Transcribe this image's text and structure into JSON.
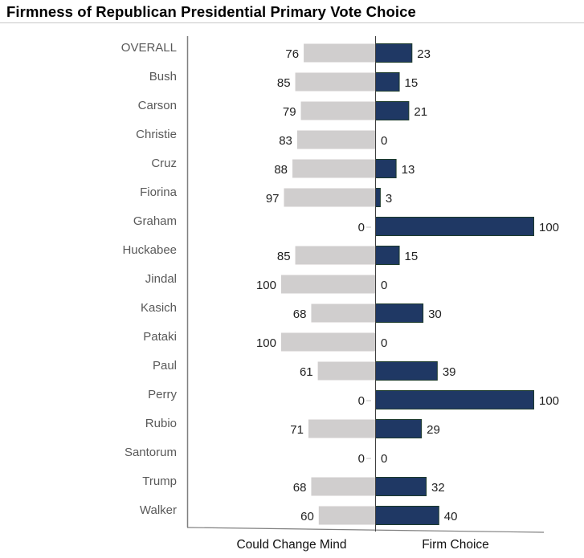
{
  "chart_data": {
    "type": "bar",
    "orientation": "horizontal-diverging",
    "title": "Firmness of Republican Presidential Primary Vote Choice",
    "categories": [
      "OVERALL",
      "Bush",
      "Carson",
      "Christie",
      "Cruz",
      "Fiorina",
      "Graham",
      "Huckabee",
      "Jindal",
      "Kasich",
      "Pataki",
      "Paul",
      "Perry",
      "Rubio",
      "Santorum",
      "Trump",
      "Walker"
    ],
    "series": [
      {
        "name": "Could Change Mind",
        "color": "#d0cece",
        "side": "left",
        "values": [
          76,
          85,
          79,
          83,
          88,
          97,
          0,
          85,
          100,
          68,
          100,
          61,
          0,
          71,
          0,
          68,
          60
        ]
      },
      {
        "name": "Firm Choice",
        "color": "#1f3864",
        "side": "right",
        "values": [
          23,
          15,
          21,
          0,
          13,
          3,
          100,
          15,
          0,
          30,
          0,
          39,
          100,
          29,
          0,
          32,
          40
        ]
      }
    ],
    "xlabel_left": "Could Change Mind",
    "xlabel_right": "Firm Choice",
    "xlim": [
      0,
      100
    ],
    "grid": false,
    "legend": "none"
  }
}
